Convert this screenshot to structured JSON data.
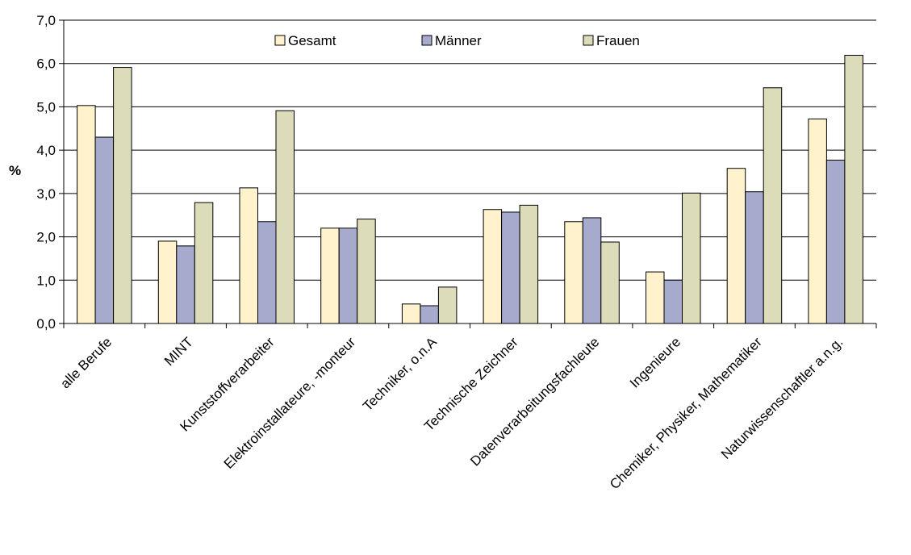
{
  "chart_data": {
    "type": "bar",
    "title": "",
    "xlabel": "",
    "ylabel": "%",
    "ylim": [
      0,
      7
    ],
    "ytick_step": 1,
    "ytick_labels": [
      "0,0",
      "1,0",
      "2,0",
      "3,0",
      "4,0",
      "5,0",
      "6,0",
      "7,0"
    ],
    "grid": true,
    "legend_position": "top-center",
    "categories": [
      "alle Berufe",
      "MINT",
      "Kunststoffverarbeiter",
      "Elektroinstallateure, -monteur",
      "Techniker, o.n.A",
      "Technische Zeichner",
      "Datenverarbeitungsfachleute",
      "Ingenieure",
      "Chemiker, Physiker, Mathematiker",
      "Naturwissenschaftler a.n.g."
    ],
    "series": [
      {
        "name": "Gesamt",
        "color": "#FFF2CC",
        "values": [
          5.03,
          1.9,
          3.13,
          2.2,
          0.45,
          2.63,
          2.35,
          1.19,
          3.58,
          4.72
        ]
      },
      {
        "name": "Männer",
        "color": "#A6AACC",
        "values": [
          4.3,
          1.79,
          2.35,
          2.2,
          0.41,
          2.57,
          2.44,
          1.0,
          3.04,
          3.77
        ]
      },
      {
        "name": "Frauen",
        "color": "#DCDBBA",
        "values": [
          5.91,
          2.79,
          4.91,
          2.41,
          0.84,
          2.73,
          1.88,
          3.01,
          5.44,
          6.19
        ]
      }
    ]
  }
}
